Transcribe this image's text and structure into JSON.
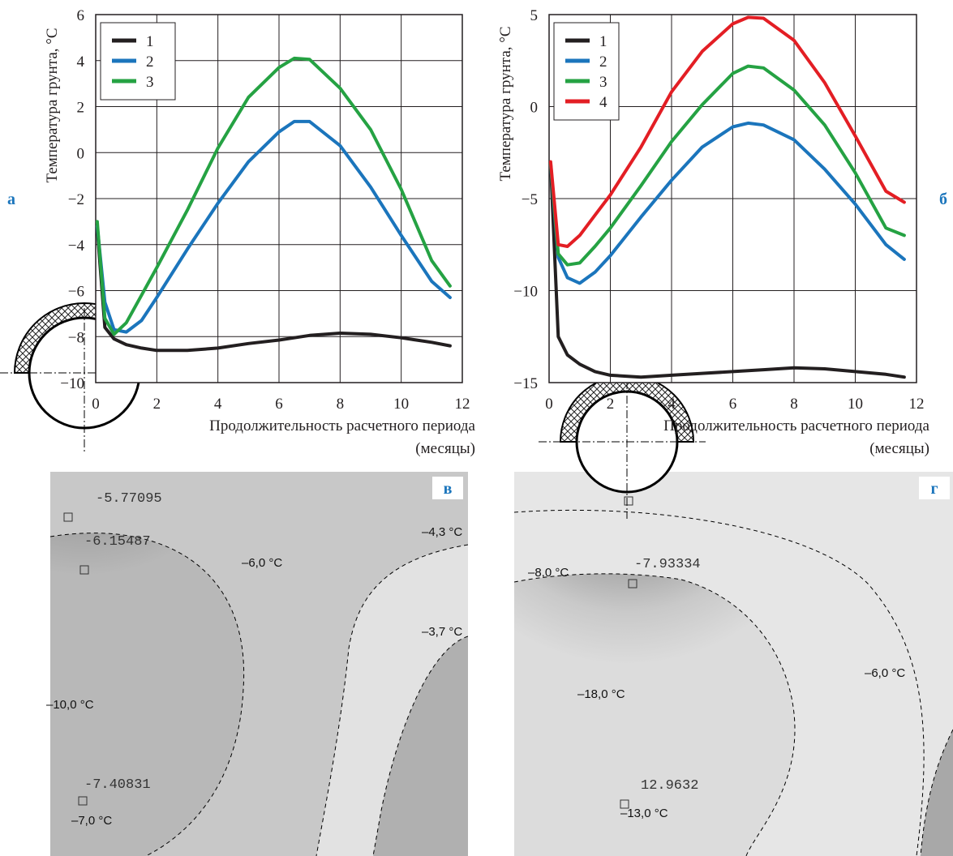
{
  "chart_data": [
    {
      "type": "line",
      "panel_label": "а",
      "y_label": "Температура грунта, °C",
      "x_label": "Продолжительность расчетного периода (месяцы)",
      "x": [
        0.05,
        0.3,
        0.6,
        1,
        1.5,
        2,
        3,
        4,
        5,
        6,
        6.5,
        7,
        8,
        9,
        10,
        11,
        11.6
      ],
      "xlim": [
        0,
        12
      ],
      "xticks": [
        0,
        2,
        4,
        6,
        8,
        10,
        12
      ],
      "ylim": [
        -10,
        6
      ],
      "yticks": [
        {
          "value": -10,
          "label": "−10"
        },
        {
          "value": -8,
          "label": "−8"
        },
        {
          "value": -6,
          "label": "−6"
        },
        {
          "value": -4,
          "label": "−4"
        },
        {
          "value": -2,
          "label": "−2"
        },
        0,
        2,
        4,
        6
      ],
      "grid": true,
      "legend": "upper-left",
      "series": [
        {
          "name": "1",
          "color": "#231f20",
          "values": [
            -3.3,
            -7.6,
            -8.1,
            -8.35,
            -8.5,
            -8.6,
            -8.6,
            -8.5,
            -8.3,
            -8.15,
            -8.05,
            -7.95,
            -7.85,
            -7.9,
            -8.05,
            -8.25,
            -8.4
          ]
        },
        {
          "name": "2",
          "color": "#1b75bc",
          "values": [
            -3.2,
            -6.5,
            -7.7,
            -7.8,
            -7.3,
            -6.3,
            -4.2,
            -2.2,
            -0.4,
            0.9,
            1.35,
            1.35,
            0.3,
            -1.5,
            -3.6,
            -5.6,
            -6.3
          ]
        },
        {
          "name": "3",
          "color": "#25a243",
          "values": [
            -3.0,
            -7.2,
            -7.9,
            -7.4,
            -6.2,
            -5.0,
            -2.5,
            0.2,
            2.4,
            3.7,
            4.1,
            4.05,
            2.8,
            1.0,
            -1.6,
            -4.7,
            -5.8
          ]
        }
      ]
    },
    {
      "type": "line",
      "panel_label": "б",
      "y_label": "Температура грунта, °C",
      "x_label": "Продолжительность расчетного периода (месяцы)",
      "x": [
        0.05,
        0.3,
        0.6,
        1,
        1.5,
        2,
        3,
        4,
        5,
        6,
        6.5,
        7,
        8,
        9,
        10,
        11,
        11.6
      ],
      "xlim": [
        0,
        12
      ],
      "xticks": [
        0,
        2,
        4,
        6,
        8,
        10,
        12
      ],
      "ylim": [
        -15,
        5
      ],
      "yticks": [
        {
          "value": -15,
          "label": "−15"
        },
        {
          "value": -10,
          "label": "−10"
        },
        {
          "value": -5,
          "label": "−5"
        },
        0,
        5
      ],
      "grid": true,
      "legend": "upper-left",
      "series": [
        {
          "name": "1",
          "color": "#231f20",
          "values": [
            -3.1,
            -12.5,
            -13.5,
            -14.0,
            -14.4,
            -14.6,
            -14.7,
            -14.6,
            -14.5,
            -14.4,
            -14.35,
            -14.3,
            -14.2,
            -14.25,
            -14.4,
            -14.55,
            -14.7
          ]
        },
        {
          "name": "2",
          "color": "#1b75bc",
          "values": [
            -3.2,
            -8.2,
            -9.3,
            -9.6,
            -9.0,
            -8.1,
            -6.0,
            -4.0,
            -2.2,
            -1.1,
            -0.9,
            -1.0,
            -1.8,
            -3.4,
            -5.3,
            -7.5,
            -8.3
          ]
        },
        {
          "name": "3",
          "color": "#25a243",
          "values": [
            -3.1,
            -8.0,
            -8.6,
            -8.5,
            -7.6,
            -6.6,
            -4.3,
            -1.9,
            0.1,
            1.8,
            2.2,
            2.1,
            0.9,
            -1.0,
            -3.6,
            -6.6,
            -7.0
          ]
        },
        {
          "name": "4",
          "color": "#e31e24",
          "values": [
            -3.0,
            -7.5,
            -7.6,
            -7.0,
            -5.9,
            -4.8,
            -2.2,
            0.8,
            3.0,
            4.5,
            4.85,
            4.8,
            3.6,
            1.3,
            -1.6,
            -4.6,
            -5.2
          ]
        }
      ]
    }
  ],
  "contour_panels": [
    {
      "label": "в",
      "annotations": [
        "-5.77095",
        "-6.15487",
        "–6,0 °C",
        "–4,3 °C",
        "–3,7 °C",
        "–10,0 °C",
        "-7.40831",
        "–7,0 °C"
      ]
    },
    {
      "label": "г",
      "annotations": [
        "–8,0 °C",
        "-7.93334",
        "–6,0 °C",
        "–18,0 °C",
        "12.9632",
        "–13,0 °C"
      ]
    }
  ]
}
